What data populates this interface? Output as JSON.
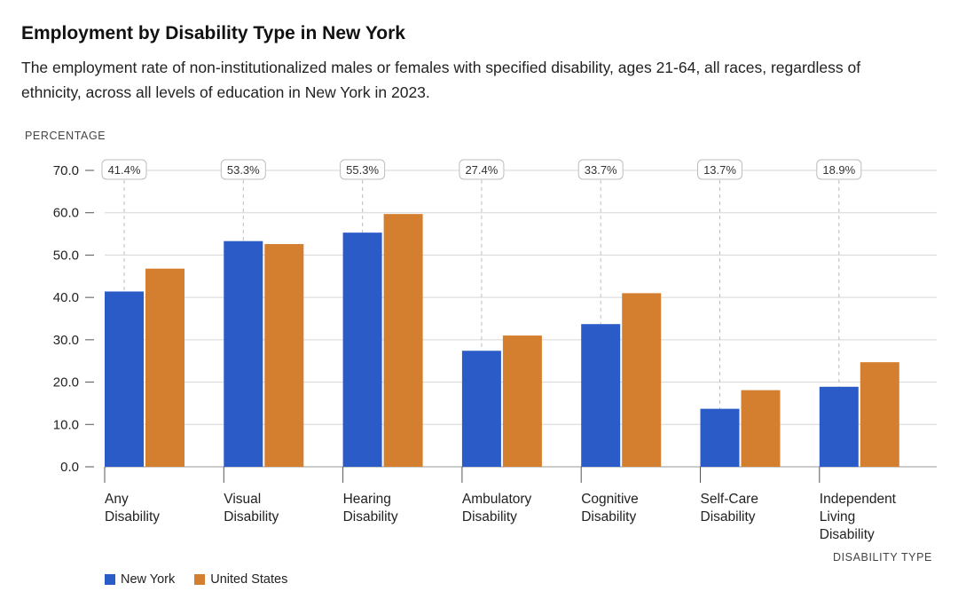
{
  "chart_data": {
    "type": "bar",
    "title": "Employment by Disability Type in New York",
    "subtitle": "The employment rate of non-institutionalized males or females with specified disability, ages 21-64, all races, regardless of ethnicity, across all levels of education in New York in 2023.",
    "ylabel": "PERCENTAGE",
    "xlabel": "DISABILITY TYPE",
    "ylim": [
      0,
      70
    ],
    "yticks": [
      0,
      10,
      20,
      30,
      40,
      50,
      60,
      70
    ],
    "ytick_labels": [
      "0.0",
      "10.0",
      "20.0",
      "30.0",
      "40.0",
      "50.0",
      "60.0",
      "70.0"
    ],
    "categories": [
      [
        "Any",
        "Disability"
      ],
      [
        "Visual",
        "Disability"
      ],
      [
        "Hearing",
        "Disability"
      ],
      [
        "Ambulatory",
        "Disability"
      ],
      [
        "Cognitive",
        "Disability"
      ],
      [
        "Self-Care",
        "Disability"
      ],
      [
        "Independent",
        "Living",
        "Disability"
      ]
    ],
    "annotations": [
      "41.4%",
      "53.3%",
      "55.3%",
      "27.4%",
      "33.7%",
      "13.7%",
      "18.9%"
    ],
    "series": [
      {
        "name": "New York",
        "color": "#2a5bc7",
        "values": [
          41.4,
          53.3,
          55.3,
          27.4,
          33.7,
          13.7,
          18.9
        ]
      },
      {
        "name": "United States",
        "color": "#d47f2f",
        "values": [
          46.8,
          52.6,
          59.7,
          31.0,
          41.0,
          18.1,
          24.7
        ]
      }
    ],
    "grid": true,
    "legend_position": "bottom-left"
  }
}
